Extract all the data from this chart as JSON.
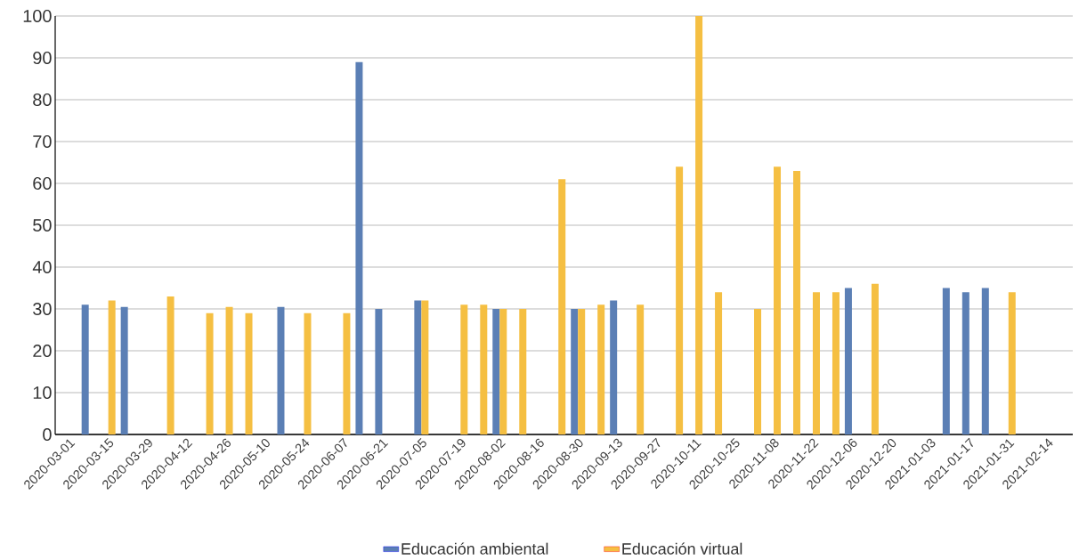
{
  "chart_data": {
    "type": "bar",
    "x": [
      "2020-03-08",
      "2020-03-15",
      "2020-03-22",
      "2020-04-05",
      "2020-04-19",
      "2020-04-26",
      "2020-05-03",
      "2020-05-17",
      "2020-05-24",
      "2020-06-07",
      "2020-06-14",
      "2020-06-21",
      "2020-07-05",
      "2020-07-19",
      "2020-07-26",
      "2020-08-02",
      "2020-08-09",
      "2020-08-23",
      "2020-08-30",
      "2020-09-06",
      "2020-09-13",
      "2020-09-20",
      "2020-10-04",
      "2020-10-11",
      "2020-10-18",
      "2020-11-01",
      "2020-11-08",
      "2020-11-15",
      "2020-11-22",
      "2020-11-29",
      "2020-12-06",
      "2020-12-13",
      "2021-01-10",
      "2021-01-17",
      "2021-01-24",
      "2021-01-31"
    ],
    "series": [
      {
        "name": "Educación ambiental",
        "color": "#5b7fb5",
        "values": [
          31,
          null,
          30.5,
          null,
          null,
          null,
          null,
          30.5,
          null,
          null,
          89,
          30,
          32,
          null,
          null,
          30,
          null,
          null,
          30,
          null,
          32,
          null,
          null,
          null,
          null,
          null,
          null,
          null,
          null,
          null,
          35,
          null,
          35,
          34,
          35,
          null
        ]
      },
      {
        "name": "Educación virtual",
        "color": "#f5bf42",
        "values": [
          null,
          32,
          null,
          33,
          29,
          30.5,
          29,
          null,
          29,
          29,
          null,
          null,
          32,
          31,
          31,
          30,
          30,
          61,
          30,
          31,
          null,
          31,
          64,
          100,
          34,
          30,
          64,
          63,
          34,
          34,
          null,
          36,
          null,
          null,
          null,
          34
        ]
      }
    ],
    "xlim": [
      "2020-02-25",
      "2021-02-23"
    ],
    "xticks": [
      "2020-03-01",
      "2020-03-15",
      "2020-03-29",
      "2020-04-12",
      "2020-04-26",
      "2020-05-10",
      "2020-05-24",
      "2020-06-07",
      "2020-06-21",
      "2020-07-05",
      "2020-07-19",
      "2020-08-02",
      "2020-08-16",
      "2020-08-30",
      "2020-09-13",
      "2020-09-27",
      "2020-10-11",
      "2020-10-25",
      "2020-11-08",
      "2020-11-22",
      "2020-12-06",
      "2020-12-20",
      "2021-01-03",
      "2021-01-17",
      "2021-01-31",
      "2021-02-14"
    ],
    "ylim": [
      0,
      100
    ],
    "yticks": [
      0,
      10,
      20,
      30,
      40,
      50,
      60,
      70,
      80,
      90,
      100
    ],
    "grid": "y",
    "legend": "bottom"
  }
}
